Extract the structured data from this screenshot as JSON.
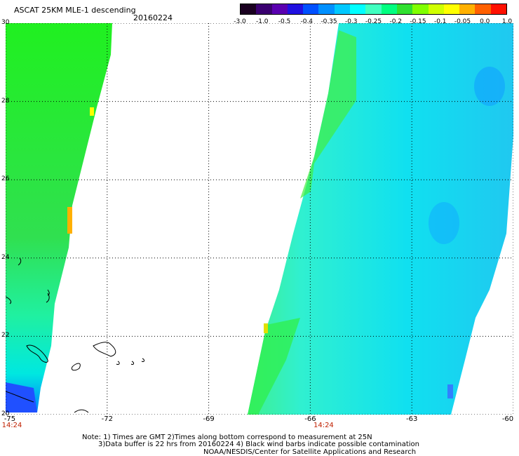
{
  "header": {
    "title": "ASCAT 25KM MLE-1 descending",
    "date": "20160224"
  },
  "colorbar": {
    "colors": [
      "#1a0020",
      "#3a0070",
      "#5a00b0",
      "#2010e0",
      "#0050ff",
      "#0090ff",
      "#00c8ff",
      "#00ffff",
      "#40ffc0",
      "#00ff80",
      "#30e030",
      "#80ff00",
      "#d0ff00",
      "#ffff00",
      "#ffb000",
      "#ff6000",
      "#ff1000"
    ],
    "labels": [
      "-3.0",
      "-1.0",
      "-0.5",
      "-0.4",
      "-0.35",
      "-0.3",
      "-0.25",
      "-0.2",
      "-0.15",
      "-0.1",
      "-0.05",
      "0.0",
      "1.0"
    ]
  },
  "axes": {
    "y_ticks": [
      "30",
      "28",
      "26",
      "24",
      "22",
      "20"
    ],
    "x_ticks": [
      "-75",
      "-72",
      "-69",
      "-66",
      "-63",
      "-60"
    ],
    "time_labels": [
      "14:24",
      "14:24"
    ]
  },
  "footer": {
    "note1": "Note: 1) Times are GMT 2)Times along bottom correspond to measurement at 25N",
    "note2": "3)Data buffer is 22 hrs from 20160224 4) Black wind barbs indicate possible contamination",
    "note3": "NOAA/NESDIS/Center for Satellite Applications and Research"
  }
}
